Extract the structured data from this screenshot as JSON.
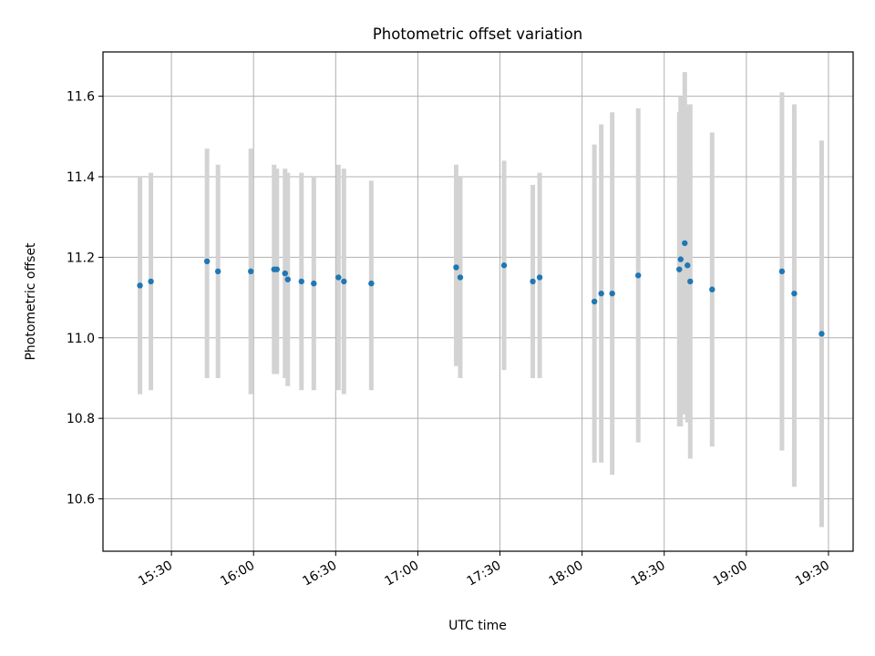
{
  "chart_data": {
    "type": "scatter",
    "title": "Photometric offset variation",
    "xlabel": "UTC time",
    "ylabel": "Photometric offset",
    "x_ticks": [
      "15:30",
      "16:00",
      "16:30",
      "17:00",
      "17:30",
      "18:00",
      "18:30",
      "19:00",
      "19:30"
    ],
    "y_ticks": [
      "10.6",
      "10.8",
      "11.0",
      "11.2",
      "11.4",
      "11.6"
    ],
    "xlim": [
      "15:05",
      "19:39"
    ],
    "ylim": [
      10.47,
      11.71
    ],
    "grid": true,
    "colors": {
      "marker": "#1f77b4",
      "errorbar": "#d3d3d3",
      "grid": "#b0b0b0"
    },
    "points": [
      {
        "time": "15:18:30",
        "y": 11.13,
        "err_low": 10.86,
        "err_high": 11.4
      },
      {
        "time": "15:22:30",
        "y": 11.14,
        "err_low": 10.87,
        "err_high": 11.41
      },
      {
        "time": "15:43:00",
        "y": 11.19,
        "err_low": 10.9,
        "err_high": 11.47
      },
      {
        "time": "15:47:00",
        "y": 11.165,
        "err_low": 10.9,
        "err_high": 11.43
      },
      {
        "time": "15:59:00",
        "y": 11.165,
        "err_low": 10.86,
        "err_high": 11.47
      },
      {
        "time": "16:07:30",
        "y": 11.17,
        "err_low": 10.91,
        "err_high": 11.43
      },
      {
        "time": "16:08:30",
        "y": 11.17,
        "err_low": 10.91,
        "err_high": 11.42
      },
      {
        "time": "16:11:30",
        "y": 11.16,
        "err_low": 10.9,
        "err_high": 11.42
      },
      {
        "time": "16:12:30",
        "y": 11.145,
        "err_low": 10.88,
        "err_high": 11.41
      },
      {
        "time": "16:17:30",
        "y": 11.14,
        "err_low": 10.87,
        "err_high": 11.41
      },
      {
        "time": "16:22:00",
        "y": 11.135,
        "err_low": 10.87,
        "err_high": 11.4
      },
      {
        "time": "16:31:00",
        "y": 11.15,
        "err_low": 10.87,
        "err_high": 11.43
      },
      {
        "time": "16:33:00",
        "y": 11.14,
        "err_low": 10.86,
        "err_high": 11.42
      },
      {
        "time": "16:43:00",
        "y": 11.135,
        "err_low": 10.87,
        "err_high": 11.39
      },
      {
        "time": "17:14:00",
        "y": 11.175,
        "err_low": 10.93,
        "err_high": 11.43
      },
      {
        "time": "17:15:30",
        "y": 11.15,
        "err_low": 10.9,
        "err_high": 11.4
      },
      {
        "time": "17:31:30",
        "y": 11.18,
        "err_low": 10.92,
        "err_high": 11.44
      },
      {
        "time": "17:42:00",
        "y": 11.14,
        "err_low": 10.9,
        "err_high": 11.38
      },
      {
        "time": "17:44:30",
        "y": 11.15,
        "err_low": 10.9,
        "err_high": 11.41
      },
      {
        "time": "18:04:30",
        "y": 11.09,
        "err_low": 10.69,
        "err_high": 11.48
      },
      {
        "time": "18:07:00",
        "y": 11.11,
        "err_low": 10.69,
        "err_high": 11.53
      },
      {
        "time": "18:11:00",
        "y": 11.11,
        "err_low": 10.66,
        "err_high": 11.56
      },
      {
        "time": "18:20:30",
        "y": 11.155,
        "err_low": 10.74,
        "err_high": 11.57
      },
      {
        "time": "18:35:30",
        "y": 11.17,
        "err_low": 10.78,
        "err_high": 11.56
      },
      {
        "time": "18:36:00",
        "y": 11.195,
        "err_low": 10.78,
        "err_high": 11.6
      },
      {
        "time": "18:37:30",
        "y": 11.235,
        "err_low": 10.81,
        "err_high": 11.66
      },
      {
        "time": "18:38:30",
        "y": 11.18,
        "err_low": 10.79,
        "err_high": 11.58
      },
      {
        "time": "18:39:30",
        "y": 11.14,
        "err_low": 10.7,
        "err_high": 11.58
      },
      {
        "time": "18:47:30",
        "y": 11.12,
        "err_low": 10.73,
        "err_high": 11.51
      },
      {
        "time": "19:13:00",
        "y": 11.165,
        "err_low": 10.72,
        "err_high": 11.61
      },
      {
        "time": "19:17:30",
        "y": 11.11,
        "err_low": 10.63,
        "err_high": 11.58
      },
      {
        "time": "19:27:30",
        "y": 11.01,
        "err_low": 10.53,
        "err_high": 11.49
      }
    ]
  }
}
